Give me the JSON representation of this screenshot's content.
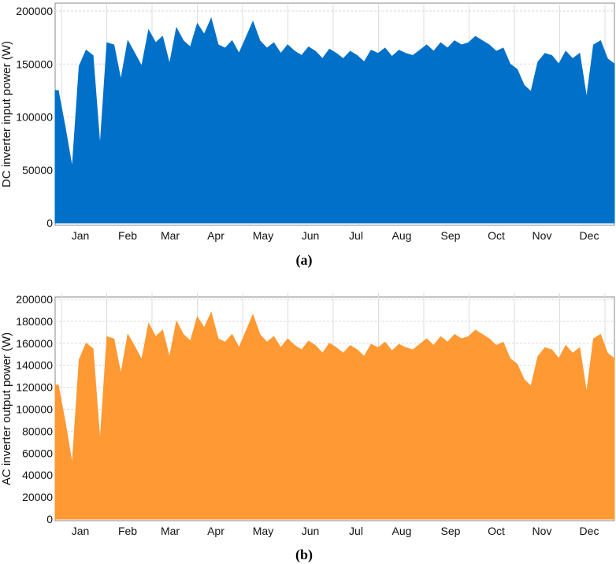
{
  "chart_data": [
    {
      "type": "area",
      "panel_label": "(a)",
      "title": "",
      "xlabel": "",
      "ylabel": "DC inverter input power (W)",
      "ylim": [
        0,
        200000
      ],
      "yticks": [
        0,
        50000,
        100000,
        150000,
        200000
      ],
      "ytick_labels": [
        "0",
        "50000",
        "100000",
        "150000",
        "200000"
      ],
      "xticks": [
        "Jan",
        "Feb",
        "Mar",
        "Apr",
        "May",
        "Jun",
        "Jul",
        "Aug",
        "Sep",
        "Oct",
        "Nov",
        "Dec"
      ],
      "grid": true,
      "color": "#0070C8",
      "series": [
        {
          "x": [
            0.0,
            0.15,
            0.3,
            0.45,
            0.6,
            0.75,
            0.9,
            1.05,
            1.2,
            1.35,
            1.5,
            1.65,
            1.8,
            1.95,
            2.1,
            2.25,
            2.4,
            2.55,
            2.7,
            2.85,
            3.0,
            3.15,
            3.3,
            3.45,
            3.6,
            3.75,
            3.9,
            4.05,
            4.2,
            4.35,
            4.5,
            4.65,
            4.8,
            4.95,
            5.1,
            5.25,
            5.4,
            5.55,
            5.7,
            5.85,
            6.0,
            6.15,
            6.3,
            6.45,
            6.6,
            6.75,
            6.9,
            7.05,
            7.2,
            7.35,
            7.5,
            7.65,
            7.8,
            7.95,
            8.1,
            8.25,
            8.4,
            8.55,
            8.7,
            8.85,
            9.0,
            9.15,
            9.3,
            9.45,
            9.6,
            9.75,
            9.9,
            10.05,
            10.2,
            10.35,
            10.5,
            10.65,
            10.8,
            10.95,
            11.1,
            11.25,
            11.4,
            11.55,
            11.7,
            11.85,
            12.0
          ],
          "values": [
            125000,
            90000,
            52000,
            148000,
            163000,
            158000,
            72000,
            170000,
            168000,
            135000,
            172000,
            160000,
            148000,
            182000,
            170000,
            176000,
            150000,
            184000,
            172000,
            166000,
            188000,
            178000,
            193000,
            168000,
            165000,
            172000,
            160000,
            175000,
            190000,
            172000,
            165000,
            170000,
            160000,
            168000,
            162000,
            158000,
            166000,
            162000,
            155000,
            164000,
            160000,
            155000,
            162000,
            158000,
            152000,
            163000,
            160000,
            165000,
            157000,
            163000,
            160000,
            158000,
            163000,
            168000,
            162000,
            170000,
            165000,
            172000,
            168000,
            170000,
            176000,
            172000,
            168000,
            162000,
            165000,
            150000,
            145000,
            130000,
            124000,
            152000,
            160000,
            158000,
            150000,
            162000,
            155000,
            160000,
            118000,
            168000,
            172000,
            155000,
            150000
          ]
        }
      ]
    },
    {
      "type": "area",
      "panel_label": "(b)",
      "title": "",
      "xlabel": "",
      "ylabel": "AC inverter output power (W)",
      "ylim": [
        0,
        200000
      ],
      "yticks": [
        0,
        20000,
        40000,
        60000,
        80000,
        100000,
        120000,
        140000,
        160000,
        180000,
        200000
      ],
      "ytick_labels": [
        "0",
        "20000",
        "40000",
        "60000",
        "80000",
        "100000",
        "120000",
        "140000",
        "160000",
        "180000",
        "200000"
      ],
      "xticks": [
        "Jan",
        "Feb",
        "Mar",
        "Apr",
        "May",
        "Jun",
        "Jul",
        "Aug",
        "Sep",
        "Oct",
        "Nov",
        "Dec"
      ],
      "grid": true,
      "color": "#FF9933",
      "series": [
        {
          "x": [
            0.0,
            0.15,
            0.3,
            0.45,
            0.6,
            0.75,
            0.9,
            1.05,
            1.2,
            1.35,
            1.5,
            1.65,
            1.8,
            1.95,
            2.1,
            2.25,
            2.4,
            2.55,
            2.7,
            2.85,
            3.0,
            3.15,
            3.3,
            3.45,
            3.6,
            3.75,
            3.9,
            4.05,
            4.2,
            4.35,
            4.5,
            4.65,
            4.8,
            4.95,
            5.1,
            5.25,
            5.4,
            5.55,
            5.7,
            5.85,
            6.0,
            6.15,
            6.3,
            6.45,
            6.6,
            6.75,
            6.9,
            7.05,
            7.2,
            7.35,
            7.5,
            7.65,
            7.8,
            7.95,
            8.1,
            8.25,
            8.4,
            8.55,
            8.7,
            8.85,
            9.0,
            9.15,
            9.3,
            9.45,
            9.6,
            9.75,
            9.9,
            10.05,
            10.2,
            10.35,
            10.5,
            10.65,
            10.8,
            10.95,
            11.1,
            11.25,
            11.4,
            11.55,
            11.7,
            11.85,
            12.0
          ],
          "values": [
            122000,
            88000,
            50000,
            145000,
            160000,
            155000,
            70000,
            166000,
            164000,
            132000,
            168000,
            157000,
            145000,
            178000,
            166000,
            172000,
            147000,
            180000,
            168000,
            162000,
            184000,
            174000,
            188000,
            164000,
            161000,
            168000,
            156000,
            171000,
            186000,
            168000,
            161000,
            166000,
            156000,
            164000,
            158000,
            154000,
            162000,
            158000,
            151000,
            160000,
            156000,
            151000,
            158000,
            154000,
            148000,
            159000,
            156000,
            161000,
            153000,
            159000,
            156000,
            154000,
            159000,
            164000,
            158000,
            166000,
            161000,
            168000,
            164000,
            166000,
            172000,
            168000,
            164000,
            158000,
            161000,
            146000,
            141000,
            127000,
            121000,
            148000,
            156000,
            154000,
            146000,
            158000,
            151000,
            156000,
            115000,
            164000,
            168000,
            151000,
            146000
          ]
        }
      ]
    }
  ]
}
